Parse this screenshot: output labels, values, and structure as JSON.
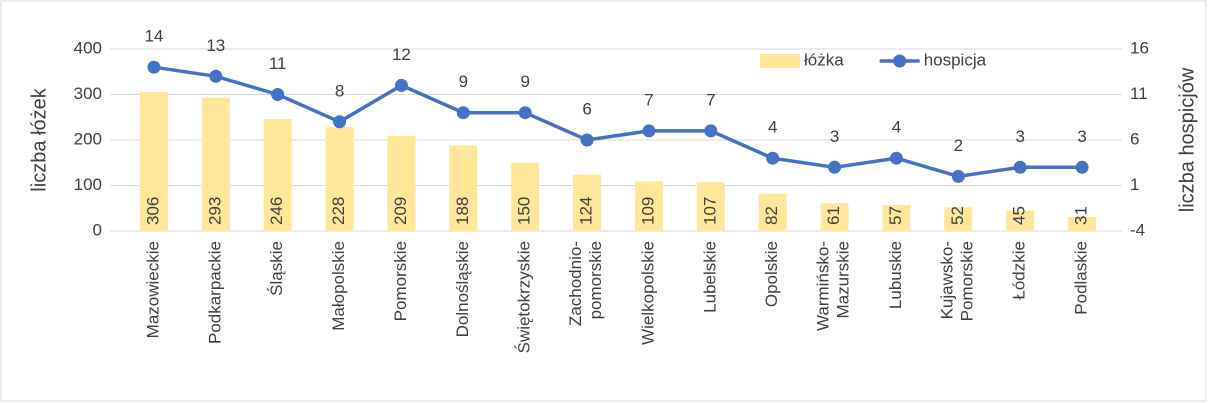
{
  "chart_data": {
    "type": "bar",
    "categories": [
      "Mazowieckie",
      "Podkarpackie",
      "Śląskie",
      "Małopolskie",
      "Pomorskie",
      "Dolnośląskie",
      "Świętokrzyskie",
      "Zachodnio-pomorskie",
      "Wielkopolskie",
      "Lubelskie",
      "Opolskie",
      "Warmińsko-Mazurskie",
      "Lubuskie",
      "Kujawsko-Pomorskie",
      "Łódzkie",
      "Podlaskie"
    ],
    "series": [
      {
        "name": "łóżka",
        "type": "bar",
        "color": "#ffe699",
        "values": [
          306,
          293,
          246,
          228,
          209,
          188,
          150,
          124,
          109,
          107,
          82,
          61,
          57,
          52,
          45,
          31
        ]
      },
      {
        "name": "hospicja",
        "type": "line",
        "axis": "y2",
        "color": "#4472c4",
        "values": [
          14,
          13,
          11,
          8,
          12,
          9,
          9,
          6,
          7,
          7,
          4,
          3,
          4,
          2,
          3,
          3
        ]
      }
    ],
    "ylabel": "liczba łóżek",
    "y2label": "liczba hospicjów",
    "ylim": [
      0,
      400
    ],
    "yticks": [
      0,
      100,
      200,
      300,
      400
    ],
    "y2lim": [
      -4,
      16
    ],
    "y2ticks": [
      -4,
      1,
      6,
      11,
      16
    ],
    "grid": true,
    "legend": "upper right"
  }
}
